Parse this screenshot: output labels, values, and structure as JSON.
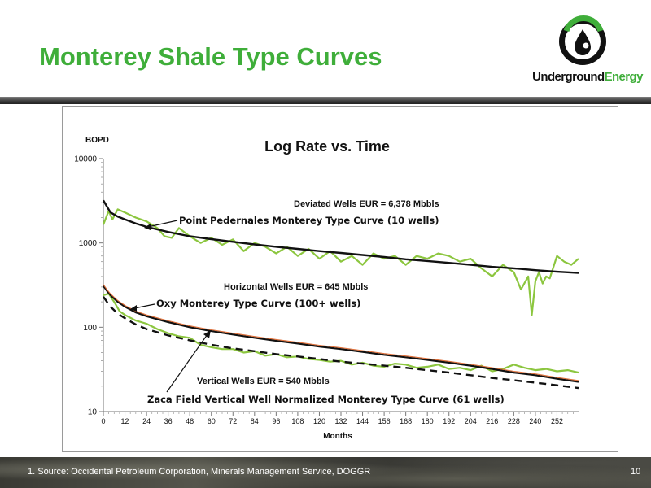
{
  "slide": {
    "title": "Monterey Shale Type Curves",
    "logo_text_part1": "Underground",
    "logo_text_part2": "Energy",
    "footnote": "1.  Source: Occidental Petroleum Corporation, Minerals Management Service, DOGGR",
    "page_number": "10"
  },
  "colors": {
    "title_green": "#3fae3a",
    "actual_data_green": "#8cc63f",
    "type_curve_black": "#111111",
    "oxy_curve_orange": "#e0703a"
  },
  "chart_data": {
    "type": "line",
    "title": "Log Rate vs. Time",
    "ylabel": "BOPD",
    "xlabel": "Months",
    "yscale": "log",
    "ylim": [
      10,
      10000
    ],
    "xlim": [
      0,
      264
    ],
    "y_ticks": [
      "10",
      "100",
      "1000",
      "10000"
    ],
    "x_ticks": [
      "0",
      "12",
      "24",
      "36",
      "48",
      "60",
      "72",
      "84",
      "96",
      "108",
      "120",
      "132",
      "144",
      "156",
      "168",
      "180",
      "192",
      "204",
      "216",
      "228",
      "240",
      "252"
    ],
    "grid": false,
    "annotations": [
      {
        "id": "deviated_eur",
        "text": "Deviated Wells EUR = 6,378 Mbbls"
      },
      {
        "id": "point_pedernales",
        "text": "Point Pedernales Monterey Type Curve (10 wells)"
      },
      {
        "id": "horizontal_eur",
        "text": "Horizontal Wells EUR = 645 Mbbls"
      },
      {
        "id": "oxy_curve",
        "text": "Oxy Monterey Type Curve (100+ wells)"
      },
      {
        "id": "vertical_eur",
        "text": "Vertical Wells EUR = 540 Mbbls"
      },
      {
        "id": "zaca_curve",
        "text": "Zaca Field Vertical Well Normalized Monterey Type Curve (61 wells)"
      }
    ],
    "series": [
      {
        "id": "deviated_actual",
        "style": "green",
        "x": [
          0,
          3,
          5,
          8,
          12,
          18,
          24,
          30,
          34,
          38,
          42,
          48,
          54,
          60,
          66,
          72,
          78,
          84,
          90,
          96,
          102,
          108,
          114,
          120,
          126,
          132,
          138,
          144,
          150,
          156,
          162,
          168,
          174,
          180,
          186,
          192,
          198,
          204,
          210,
          216,
          222,
          228,
          232,
          236,
          238,
          240,
          242,
          244,
          246,
          248,
          252,
          256,
          260,
          264
        ],
        "y": [
          1650,
          2400,
          1900,
          2500,
          2300,
          2000,
          1800,
          1500,
          1200,
          1150,
          1500,
          1200,
          1000,
          1150,
          950,
          1100,
          800,
          1000,
          900,
          750,
          900,
          700,
          850,
          650,
          800,
          600,
          700,
          550,
          750,
          650,
          700,
          550,
          700,
          650,
          750,
          700,
          600,
          650,
          500,
          400,
          550,
          450,
          280,
          400,
          140,
          350,
          450,
          330,
          400,
          380,
          700,
          600,
          550,
          650
        ]
      },
      {
        "id": "deviated_type_curve",
        "style": "black-solid",
        "x": [
          0,
          2,
          4,
          8,
          12,
          18,
          24,
          36,
          48,
          60,
          72,
          84,
          96,
          108,
          120,
          132,
          144,
          156,
          168,
          180,
          192,
          204,
          216,
          228,
          240,
          252,
          264
        ],
        "y": [
          3200,
          2700,
          2300,
          2050,
          1900,
          1700,
          1550,
          1350,
          1200,
          1110,
          1030,
          960,
          900,
          850,
          800,
          760,
          720,
          680,
          640,
          610,
          580,
          550,
          520,
          500,
          475,
          455,
          440
        ]
      },
      {
        "id": "horizontal_actual",
        "style": "green",
        "x": [
          0,
          3,
          6,
          9,
          12,
          18,
          24,
          30,
          36,
          42,
          48,
          54,
          60,
          66,
          72,
          78,
          84,
          90,
          96,
          102,
          108,
          114,
          120,
          126,
          132,
          138,
          144,
          150,
          156,
          162,
          168,
          174,
          180,
          186,
          192,
          198,
          204,
          210,
          216,
          222,
          228,
          234,
          240,
          246,
          252,
          258,
          264
        ],
        "y": [
          240,
          250,
          200,
          155,
          140,
          120,
          110,
          95,
          85,
          78,
          75,
          62,
          58,
          55,
          55,
          50,
          52,
          46,
          48,
          44,
          45,
          42,
          41,
          39,
          40,
          36,
          38,
          35,
          34,
          37,
          36,
          33,
          34,
          36,
          32,
          33,
          31,
          35,
          30,
          32,
          36,
          33,
          31,
          32,
          30,
          31,
          29
        ]
      },
      {
        "id": "oxy_type_curve",
        "style": "black-orange",
        "x": [
          0,
          2,
          4,
          8,
          12,
          18,
          24,
          36,
          48,
          60,
          72,
          84,
          96,
          108,
          120,
          132,
          144,
          156,
          168,
          180,
          192,
          204,
          216,
          228,
          240,
          252,
          264
        ],
        "y": [
          310,
          270,
          240,
          200,
          175,
          150,
          135,
          115,
          100,
          90,
          82,
          75,
          69,
          64,
          59,
          55,
          51,
          47,
          44,
          41,
          38,
          35,
          32,
          29,
          27,
          24.5,
          22.5
        ]
      },
      {
        "id": "zaca_type_curve",
        "style": "black-dashed",
        "x": [
          0,
          2,
          4,
          8,
          12,
          18,
          24,
          36,
          48,
          60,
          72,
          84,
          96,
          108,
          120,
          132,
          144,
          156,
          168,
          180,
          192,
          204,
          216,
          228,
          240,
          252,
          264
        ],
        "y": [
          230,
          200,
          175,
          145,
          128,
          108,
          95,
          80,
          70,
          62,
          56,
          52,
          48,
          45,
          42,
          39,
          37,
          35,
          33,
          31,
          29,
          27,
          25,
          23.5,
          22,
          20.5,
          19
        ]
      }
    ]
  }
}
